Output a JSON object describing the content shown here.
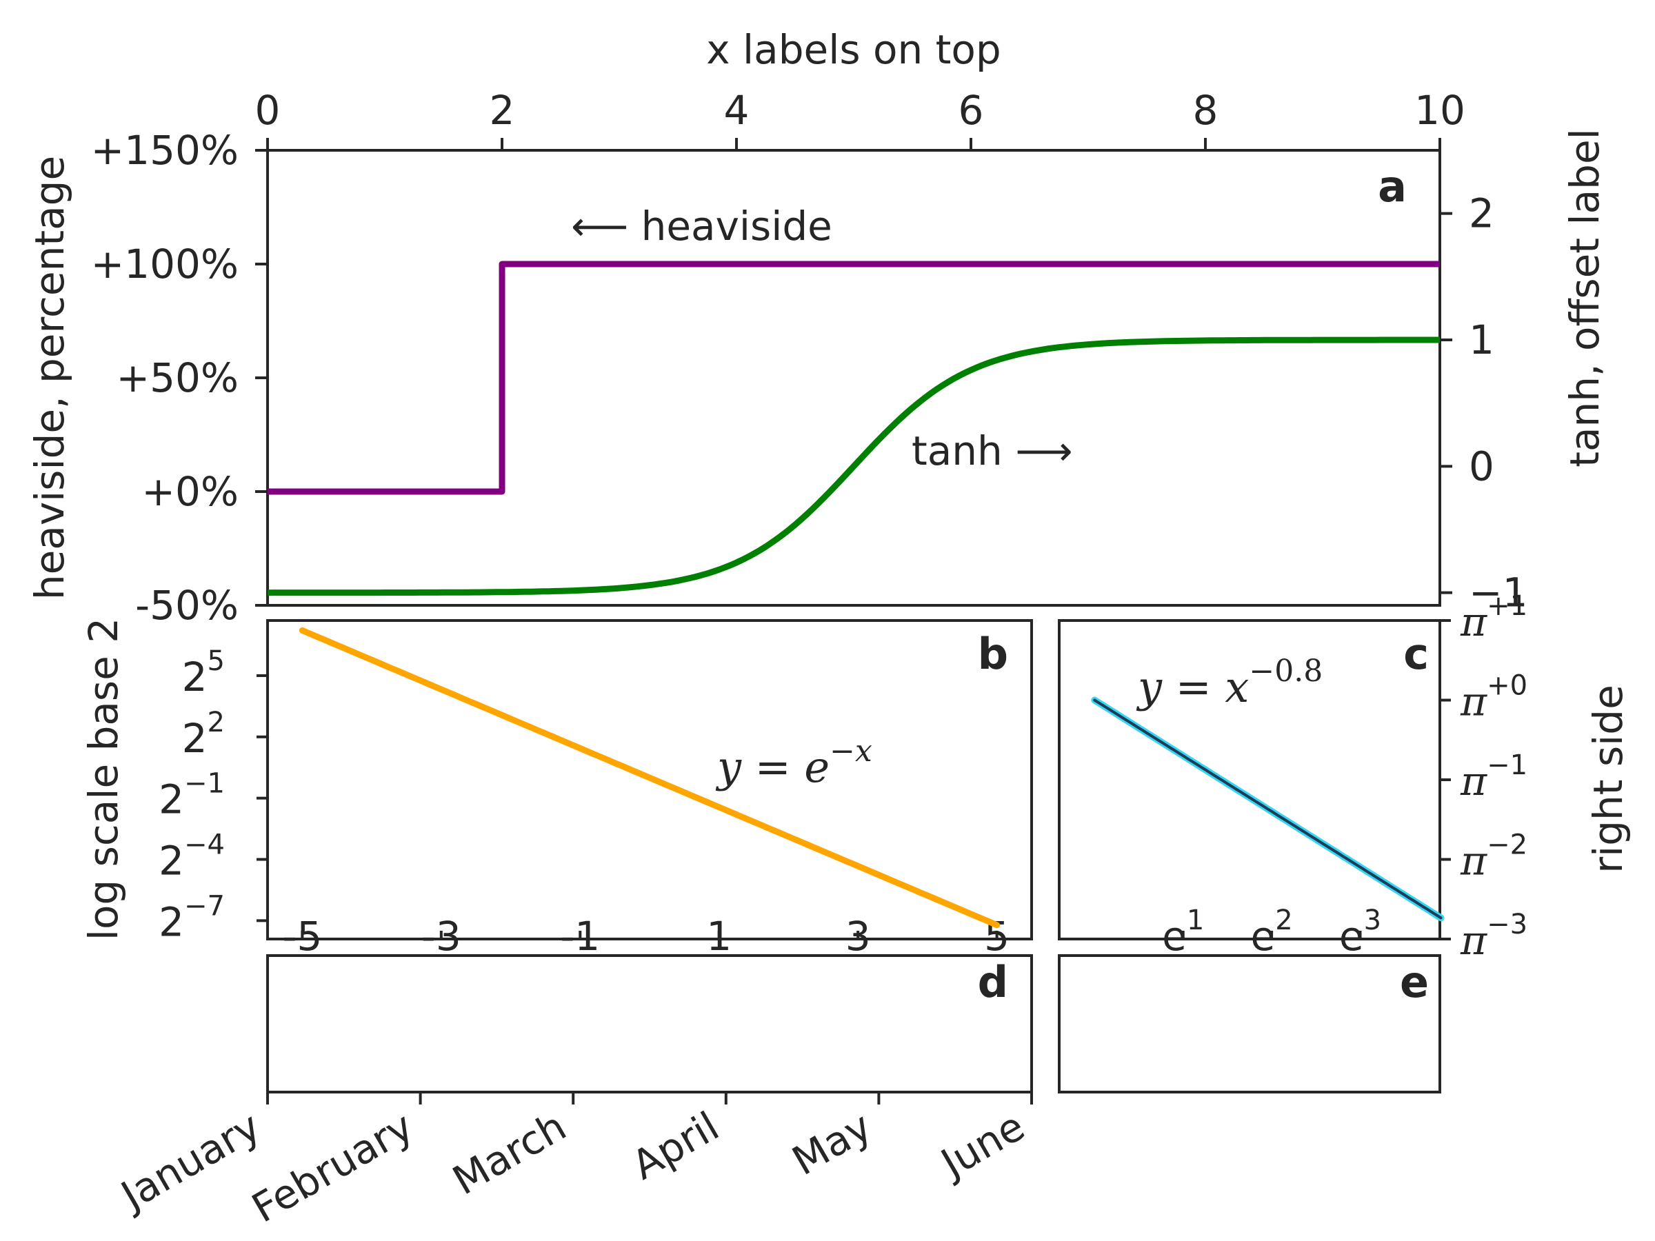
{
  "chart_data": [
    {
      "panel": "a",
      "type": "line",
      "title": "x labels on top",
      "xlabel": "x labels on top",
      "ylabel": "heaviside, percentage",
      "y2label": "tanh, offset label",
      "xlim": [
        0,
        10
      ],
      "ylim": [
        -50,
        150
      ],
      "y2lim": [
        -1.1,
        2.5
      ],
      "xticks": [
        "0",
        "2",
        "4",
        "6",
        "8",
        "10"
      ],
      "yticks": [
        "-50%",
        "+0%",
        "+50%",
        "+100%",
        "+150%"
      ],
      "y2ticks": [
        "−1",
        "0",
        "1",
        "2"
      ],
      "series": [
        {
          "name": "heaviside",
          "axis": "left",
          "color": "#800080",
          "x": [
            0,
            2,
            2,
            10
          ],
          "y": [
            0,
            0,
            100,
            100
          ]
        },
        {
          "name": "tanh",
          "axis": "right",
          "color": "#008000",
          "function": "tanh",
          "x_range": [
            0,
            10
          ],
          "center": 5,
          "scale": 1
        }
      ],
      "annotations": [
        "⟵  heaviside",
        "tanh  ⟶"
      ]
    },
    {
      "panel": "b",
      "type": "line",
      "ylabel": "log scale base 2",
      "xticks": [
        "-5",
        "-3",
        "-1",
        "1",
        "3",
        "5"
      ],
      "yticks": [
        "-7",
        "-4",
        "-1",
        "2",
        "5"
      ],
      "y_tick_base": "2",
      "yscale": "log2",
      "xlim": [
        -5.5,
        5.5
      ],
      "ylim_log2": [
        -7.9,
        7.7
      ],
      "series": [
        {
          "name": "y = e^{-x}",
          "color": "#FFA500",
          "function": "exp(-x)",
          "x_range": [
            -5,
            5
          ]
        }
      ],
      "annotation": "y = e",
      "annotation_sup": "−x"
    },
    {
      "panel": "c",
      "type": "line",
      "ylabel": "right side",
      "xscale": "ln",
      "yscale": "log_pi",
      "xticks": [
        "1",
        "2",
        "3"
      ],
      "x_tick_base": "e",
      "yticks": [
        "−3",
        "−2",
        "−1",
        "+0",
        "+1"
      ],
      "y_tick_base": "π",
      "xlim_ln": [
        -0.4,
        3.9
      ],
      "ylim_logpi": [
        -3,
        1
      ],
      "series": [
        {
          "name": "y = x^{-0.8}",
          "color": "#1f3a5a",
          "edge_color": "#36d6f0",
          "function": "x^-0.8",
          "x_range": [
            1,
            50
          ]
        }
      ],
      "annotation": "y = x",
      "annotation_sup": "−0.8"
    },
    {
      "panel": "d",
      "type": "line",
      "xticks": [
        "January",
        "February",
        "March",
        "April",
        "May",
        "June"
      ],
      "series": []
    },
    {
      "panel": "e",
      "type": "line",
      "series": []
    }
  ]
}
